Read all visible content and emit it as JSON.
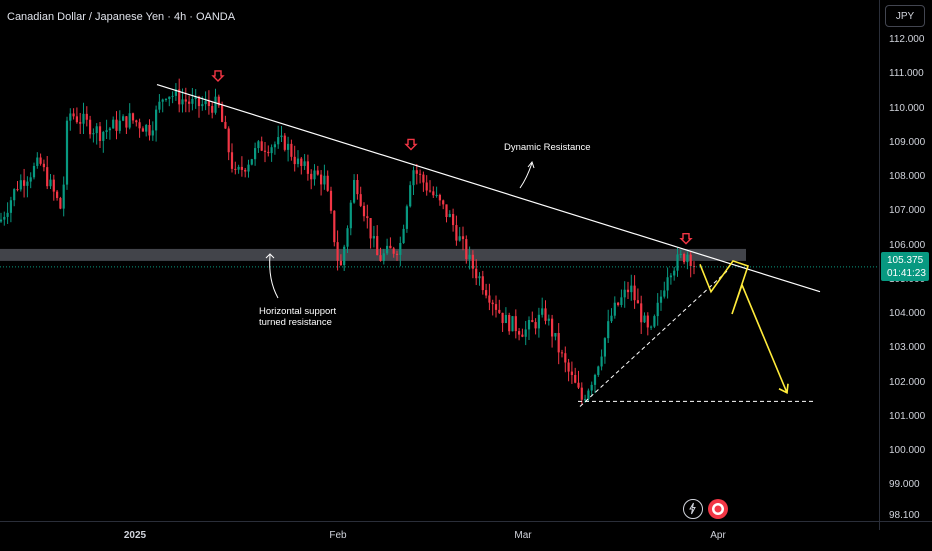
{
  "header": {
    "title": "Canadian Dollar / Japanese Yen · 4h · OANDA"
  },
  "price_axis": {
    "currency": "JPY",
    "ticks": [
      "112.000",
      "111.000",
      "110.000",
      "109.000",
      "108.000",
      "107.000",
      "106.000",
      "105.000",
      "104.000",
      "103.000",
      "102.000",
      "101.000",
      "100.000",
      "99.000",
      "98.100"
    ],
    "last_price": "105.375",
    "countdown": "01:41:23"
  },
  "time_axis": {
    "ticks": [
      "2025",
      "Feb",
      "Mar",
      "Apr"
    ]
  },
  "annotations": {
    "dynamic_resistance": "Dynamic Resistance",
    "support_line1": "Horizontal support",
    "support_line2": "turned resistance"
  },
  "colors": {
    "up": "#089981",
    "down": "#f23645",
    "projection": "#ffeb3b",
    "zone": "#787b86",
    "marker": "#f23645"
  },
  "chart_data": {
    "type": "candlestick",
    "title": "Canadian Dollar / Japanese Yen · 4h · OANDA",
    "ylim": [
      98.1,
      112.4
    ],
    "y_tick_values": [
      112,
      111,
      110,
      109,
      108,
      107,
      106,
      105,
      104,
      103,
      102,
      101,
      100,
      99,
      98.1
    ],
    "x_ticks": [
      "2025",
      "Feb",
      "Mar",
      "Apr"
    ],
    "last_price": 105.375,
    "resistance_zone": [
      105.55,
      105.9
    ],
    "support_target": 101.45,
    "price_path": [
      [
        0,
        106.7
      ],
      [
        18,
        107.8
      ],
      [
        40,
        108.4
      ],
      [
        62,
        107.0
      ],
      [
        68,
        109.9
      ],
      [
        100,
        109.3
      ],
      [
        130,
        109.7
      ],
      [
        150,
        109.4
      ],
      [
        165,
        110.5
      ],
      [
        195,
        110.1
      ],
      [
        218,
        110.1
      ],
      [
        235,
        108.0
      ],
      [
        260,
        108.9
      ],
      [
        285,
        109.0
      ],
      [
        300,
        108.3
      ],
      [
        325,
        107.9
      ],
      [
        340,
        105.2
      ],
      [
        355,
        108.0
      ],
      [
        378,
        105.6
      ],
      [
        400,
        106.0
      ],
      [
        412,
        108.3
      ],
      [
        430,
        107.6
      ],
      [
        450,
        106.8
      ],
      [
        470,
        105.5
      ],
      [
        485,
        104.8
      ],
      [
        505,
        103.8
      ],
      [
        525,
        103.5
      ],
      [
        545,
        104.0
      ],
      [
        565,
        102.5
      ],
      [
        582,
        101.5
      ],
      [
        595,
        102.3
      ],
      [
        612,
        104.0
      ],
      [
        630,
        104.8
      ],
      [
        650,
        103.3
      ],
      [
        668,
        105.3
      ],
      [
        688,
        105.8
      ],
      [
        697,
        105.3
      ]
    ],
    "trendline_resistance": [
      [
        157,
        110.7
      ],
      [
        820,
        104.65
      ]
    ],
    "rising_support": [
      [
        580,
        101.3
      ],
      [
        727,
        105.25
      ]
    ],
    "projection_path": [
      [
        700,
        105.45
      ],
      [
        711,
        104.65
      ],
      [
        733,
        105.55
      ],
      [
        748,
        105.4
      ],
      [
        732,
        104.0
      ],
      [
        742,
        104.85
      ],
      [
        787,
        101.7
      ]
    ],
    "marker_positions": [
      [
        218,
        110.95
      ],
      [
        411,
        108.95
      ],
      [
        686,
        106.2
      ]
    ]
  }
}
